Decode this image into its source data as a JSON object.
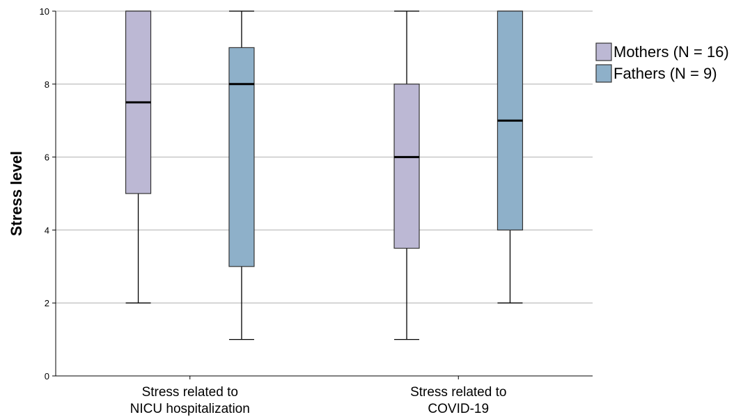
{
  "chart_data": {
    "type": "boxplot",
    "ylabel": "Stress level",
    "xlabel": "",
    "ylim": [
      0,
      10
    ],
    "yticks": [
      0,
      2,
      4,
      6,
      8,
      10
    ],
    "grid": true,
    "legend_position": "right",
    "categories": [
      [
        "Stress related to",
        "NICU hospitalization"
      ],
      [
        "Stress related to",
        "COVID-19"
      ]
    ],
    "series": [
      {
        "name": "Mothers (N = 16)",
        "color": "#bcb8d4",
        "boxes": [
          {
            "min": 2,
            "q1": 5,
            "median": 7.5,
            "q3": 10,
            "max": 10
          },
          {
            "min": 1,
            "q1": 3.5,
            "median": 6,
            "q3": 8,
            "max": 10
          }
        ]
      },
      {
        "name": "Fathers (N = 9)",
        "color": "#8eb0c9",
        "boxes": [
          {
            "min": 1,
            "q1": 3,
            "median": 8,
            "q3": 9,
            "max": 10
          },
          {
            "min": 2,
            "q1": 4,
            "median": 7,
            "q3": 10,
            "max": 10
          }
        ]
      }
    ]
  }
}
